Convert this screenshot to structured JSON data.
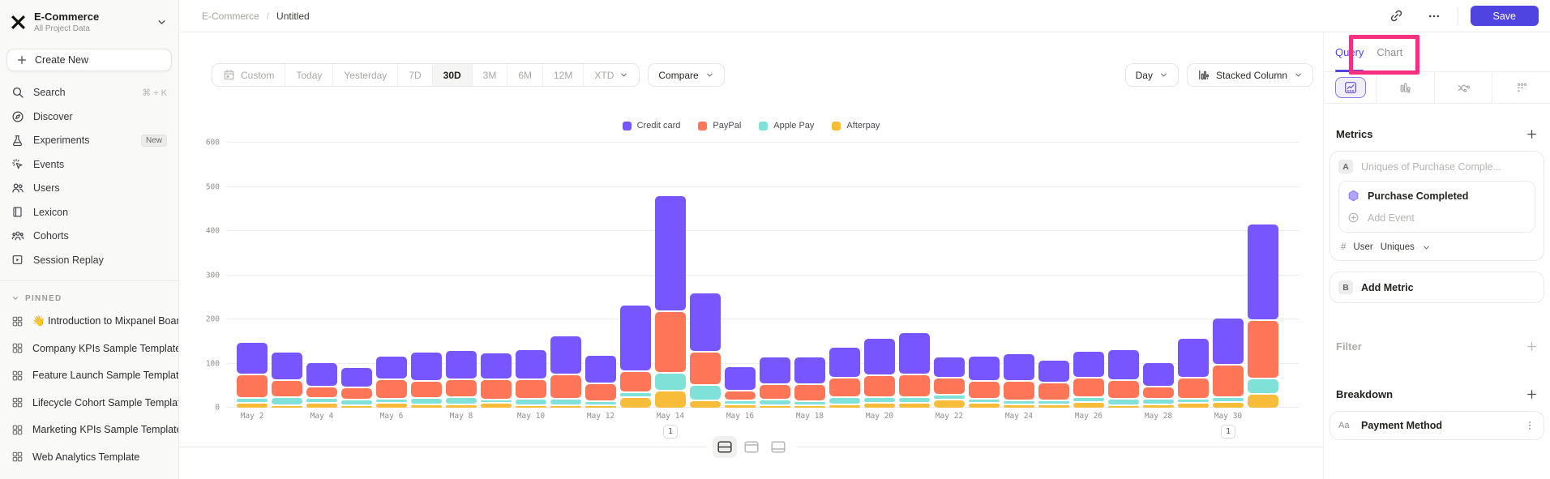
{
  "colors": {
    "accent": "#4f44e0",
    "annotation": "#f5317f"
  },
  "sidebar": {
    "project": {
      "name": "E-Commerce",
      "subtitle": "All Project Data"
    },
    "create_new": "Create New",
    "items": [
      {
        "id": "search",
        "icon": "search",
        "label": "Search",
        "shortcut": "⌘ + K"
      },
      {
        "id": "discover",
        "icon": "compass",
        "label": "Discover"
      },
      {
        "id": "experiments",
        "icon": "flask",
        "label": "Experiments",
        "badge": "New"
      },
      {
        "id": "events",
        "icon": "spark",
        "label": "Events"
      },
      {
        "id": "users",
        "icon": "users",
        "label": "Users"
      },
      {
        "id": "lexicon",
        "icon": "book",
        "label": "Lexicon"
      },
      {
        "id": "cohorts",
        "icon": "cohorts",
        "label": "Cohorts"
      },
      {
        "id": "session-replay",
        "icon": "replay",
        "label": "Session Replay"
      }
    ],
    "pinned": {
      "header": "PINNED",
      "items": [
        "👋 Introduction to Mixpanel Board",
        "Company KPIs Sample Template",
        "Feature Launch Sample Template",
        "Lifecycle Cohort Sample Template",
        "Marketing KPIs Sample Template",
        "Web Analytics Template"
      ]
    }
  },
  "topbar": {
    "breadcrumb_project": "E-Commerce",
    "breadcrumb_separator": "/",
    "breadcrumb_page": "Untitled",
    "save_label": "Save"
  },
  "toolbar": {
    "date_ranges": [
      "Custom",
      "Today",
      "Yesterday",
      "7D",
      "30D",
      "3M",
      "6M",
      "12M",
      "XTD"
    ],
    "active_range": "30D",
    "compare_label": "Compare",
    "granularity": "Day",
    "chart_type": "Stacked Column"
  },
  "chart_data": {
    "type": "bar",
    "stacked": true,
    "x": [
      "May 2",
      "May 3",
      "May 4",
      "May 5",
      "May 6",
      "May 7",
      "May 8",
      "May 9",
      "May 10",
      "May 11",
      "May 12",
      "May 13",
      "May 14",
      "May 15",
      "May 16",
      "May 17",
      "May 18",
      "May 19",
      "May 20",
      "May 21",
      "May 22",
      "May 23",
      "May 24",
      "May 25",
      "May 26",
      "May 27",
      "May 28",
      "May 29",
      "May 30",
      "May 31"
    ],
    "x_labels_shown_every": 2,
    "series": [
      {
        "name": "Credit card",
        "color": "#7856FF",
        "values": [
          72,
          64,
          54,
          45,
          53,
          67,
          67,
          60,
          67,
          87,
          64,
          150,
          263,
          135,
          55,
          62,
          63,
          70,
          85,
          95,
          48,
          58,
          62,
          52,
          60,
          70,
          55,
          90,
          105,
          218
        ]
      },
      {
        "name": "PayPal",
        "color": "#FF7557",
        "values": [
          55,
          38,
          27,
          28,
          44,
          38,
          41,
          46,
          44,
          56,
          40,
          48,
          140,
          75,
          22,
          35,
          38,
          45,
          50,
          52,
          38,
          40,
          45,
          40,
          45,
          42,
          28,
          48,
          75,
          132
        ]
      },
      {
        "name": "Apple Pay",
        "color": "#80E1D9",
        "values": [
          10,
          18,
          10,
          12,
          10,
          14,
          15,
          8,
          15,
          14,
          10,
          12,
          40,
          35,
          8,
          12,
          10,
          15,
          12,
          12,
          12,
          10,
          8,
          8,
          10,
          15,
          12,
          10,
          10,
          35
        ]
      },
      {
        "name": "Afterpay",
        "color": "#F8BC3B",
        "values": [
          13,
          8,
          13,
          8,
          12,
          10,
          10,
          13,
          7,
          8,
          6,
          25,
          40,
          18,
          10,
          8,
          7,
          10,
          13,
          13,
          20,
          12,
          10,
          10,
          15,
          5,
          10,
          12,
          15,
          33
        ]
      }
    ],
    "ylim": [
      0,
      600
    ],
    "yticks": [
      0,
      100,
      200,
      300,
      400,
      500,
      600
    ],
    "grid": true,
    "legend_position": "top-center",
    "annotations": [
      {
        "x": "May 14",
        "label": "1"
      },
      {
        "x": "May 30",
        "label": "1"
      }
    ]
  },
  "right_panel": {
    "tab_query": "Query",
    "tab_chart": "Chart",
    "metrics_header": "Metrics",
    "metric_a_badge": "A",
    "metric_a_placeholder": "Uniques of Purchase Comple...",
    "event_name": "Purchase Completed",
    "add_event": "Add Event",
    "agg_hash": "#",
    "agg_entity": "User",
    "agg_type": "Uniques",
    "metric_b_badge": "B",
    "add_metric": "Add Metric",
    "filter_header": "Filter",
    "breakdown_header": "Breakdown",
    "breakdown_type_badge": "Aa",
    "breakdown_property": "Payment Method"
  }
}
